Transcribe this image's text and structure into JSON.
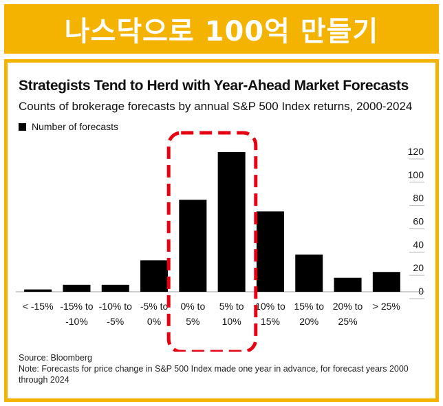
{
  "banner": {
    "title": "나스닥으로 100억 만들기"
  },
  "chart_data": {
    "type": "bar",
    "title": "Strategists Tend to Herd with Year-Ahead Market Forecasts",
    "subtitle": "Counts of brokerage forecasts by annual S&P 500 Index returns, 2000-2024",
    "legend": [
      "Number of forecasts"
    ],
    "categories": [
      [
        "< -15%"
      ],
      [
        "-15% to",
        "-10%"
      ],
      [
        "-10% to",
        "-5%"
      ],
      [
        "-5% to",
        "0%"
      ],
      [
        "0% to",
        "5%"
      ],
      [
        "5% to",
        "10%"
      ],
      [
        "10% to",
        "15%"
      ],
      [
        "15% to",
        "20%"
      ],
      [
        "20% to",
        "25%"
      ],
      [
        "> 25%"
      ]
    ],
    "values": [
      2,
      6,
      6,
      27,
      79,
      120,
      69,
      32,
      12,
      17
    ],
    "ylim": [
      0,
      120
    ],
    "yticks": [
      0,
      20,
      40,
      60,
      80,
      100,
      120
    ],
    "y_axis_side": "right",
    "highlight": {
      "categories": [
        "0% to 5%",
        "5% to 10%"
      ],
      "style": "red dashed box"
    },
    "xlabel": "",
    "ylabel": ""
  },
  "footnotes": {
    "source": "Source: Bloomberg",
    "note": "Note: Forecasts for price change in S&P 500 Index made one year in advance, for forecast years 2000 through 2024"
  },
  "colors": {
    "banner": "#f3b300",
    "bar": "#000000",
    "highlight": "#e60012"
  }
}
